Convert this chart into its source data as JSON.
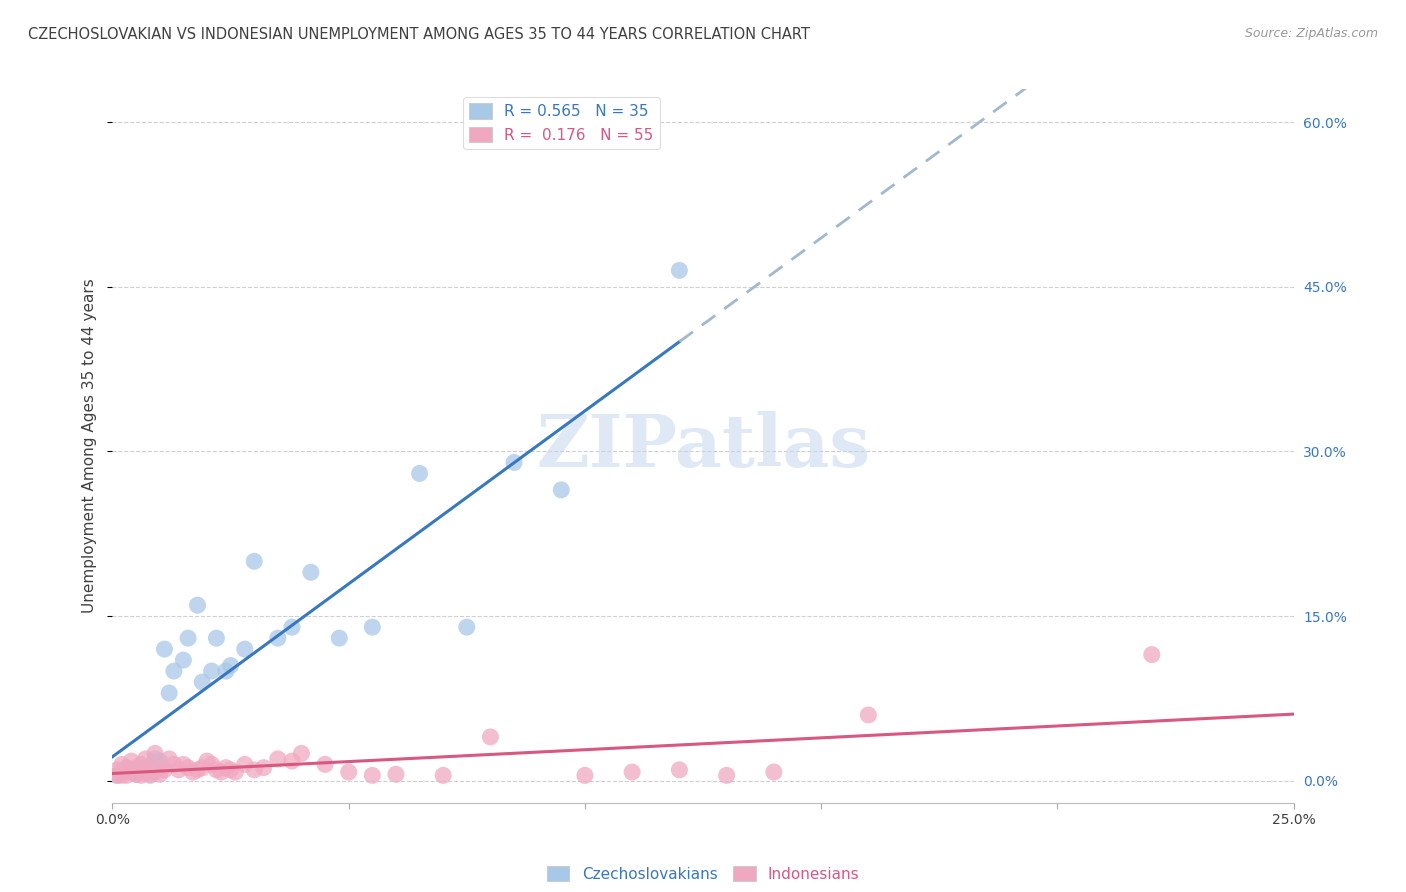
{
  "title": "CZECHOSLOVAKIAN VS INDONESIAN UNEMPLOYMENT AMONG AGES 35 TO 44 YEARS CORRELATION CHART",
  "source": "Source: ZipAtlas.com",
  "ylabel": "Unemployment Among Ages 35 to 44 years",
  "xlim": [
    0.0,
    0.25
  ],
  "ylim": [
    -0.02,
    0.63
  ],
  "xticks": [
    0.0,
    0.05,
    0.1,
    0.15,
    0.2,
    0.25
  ],
  "yticks": [
    0.0,
    0.15,
    0.3,
    0.45,
    0.6
  ],
  "czecho_color": "#a8c8e8",
  "czecho_line_color": "#3878c0",
  "czecho_dash_color": "#a0b8d0",
  "indo_color": "#f0a8c0",
  "indo_line_color": "#d85880",
  "R_czecho": 0.565,
  "N_czecho": 35,
  "R_indo": 0.176,
  "N_indo": 55,
  "legend_label_czecho": "Czechoslovakians",
  "legend_label_indo": "Indonesians",
  "czecho_x": [
    0.001,
    0.002,
    0.003,
    0.003,
    0.004,
    0.005,
    0.005,
    0.006,
    0.007,
    0.008,
    0.009,
    0.01,
    0.011,
    0.012,
    0.013,
    0.015,
    0.016,
    0.018,
    0.019,
    0.021,
    0.022,
    0.024,
    0.025,
    0.028,
    0.03,
    0.035,
    0.038,
    0.042,
    0.048,
    0.055,
    0.065,
    0.075,
    0.085,
    0.095,
    0.12
  ],
  "czecho_y": [
    0.005,
    0.008,
    0.01,
    0.012,
    0.01,
    0.006,
    0.01,
    0.008,
    0.012,
    0.006,
    0.02,
    0.018,
    0.12,
    0.08,
    0.1,
    0.11,
    0.13,
    0.16,
    0.09,
    0.1,
    0.13,
    0.1,
    0.105,
    0.12,
    0.2,
    0.13,
    0.14,
    0.19,
    0.13,
    0.14,
    0.28,
    0.14,
    0.29,
    0.265,
    0.465
  ],
  "indo_x": [
    0.001,
    0.001,
    0.002,
    0.002,
    0.003,
    0.003,
    0.004,
    0.004,
    0.005,
    0.005,
    0.006,
    0.006,
    0.007,
    0.007,
    0.008,
    0.008,
    0.009,
    0.009,
    0.01,
    0.01,
    0.011,
    0.012,
    0.013,
    0.014,
    0.015,
    0.016,
    0.017,
    0.018,
    0.019,
    0.02,
    0.021,
    0.022,
    0.023,
    0.024,
    0.025,
    0.026,
    0.028,
    0.03,
    0.032,
    0.035,
    0.038,
    0.04,
    0.045,
    0.05,
    0.055,
    0.06,
    0.07,
    0.08,
    0.1,
    0.11,
    0.12,
    0.13,
    0.14,
    0.16,
    0.22
  ],
  "indo_y": [
    0.01,
    0.005,
    0.015,
    0.005,
    0.01,
    0.005,
    0.018,
    0.008,
    0.012,
    0.006,
    0.015,
    0.005,
    0.02,
    0.008,
    0.01,
    0.005,
    0.025,
    0.008,
    0.012,
    0.006,
    0.01,
    0.02,
    0.015,
    0.01,
    0.015,
    0.012,
    0.008,
    0.01,
    0.012,
    0.018,
    0.015,
    0.01,
    0.008,
    0.012,
    0.01,
    0.008,
    0.015,
    0.01,
    0.012,
    0.02,
    0.018,
    0.025,
    0.015,
    0.008,
    0.005,
    0.006,
    0.005,
    0.04,
    0.005,
    0.008,
    0.01,
    0.005,
    0.008,
    0.06,
    0.115
  ],
  "background_color": "#ffffff",
  "grid_color": "#d0d0d0",
  "text_color": "#404040",
  "watermark_text": "ZIPatlas",
  "watermark_color": "#c5d8f0"
}
